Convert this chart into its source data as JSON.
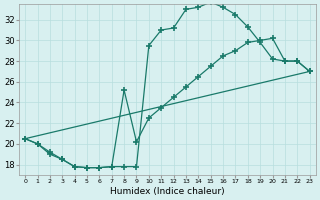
{
  "xlabel": "Humidex (Indice chaleur)",
  "bg_color": "#d8f0f0",
  "line_color": "#1a7a6a",
  "grid_color": "#b8dede",
  "xlim": [
    -0.5,
    23.5
  ],
  "ylim": [
    17,
    33.5
  ],
  "xticks": [
    0,
    1,
    2,
    3,
    4,
    5,
    6,
    7,
    8,
    9,
    10,
    11,
    12,
    13,
    14,
    15,
    16,
    17,
    18,
    19,
    20,
    21,
    22,
    23
  ],
  "yticks": [
    18,
    20,
    22,
    24,
    26,
    28,
    30,
    32
  ],
  "line1_x": [
    0,
    1,
    2,
    3,
    4,
    5,
    6,
    7,
    8,
    9,
    10,
    11,
    12,
    13,
    14,
    15,
    16,
    17,
    18,
    19,
    20,
    21,
    22,
    23
  ],
  "line1_y": [
    20.5,
    20.0,
    19.0,
    18.5,
    17.8,
    17.7,
    17.7,
    17.8,
    17.8,
    17.8,
    29.5,
    31.0,
    31.2,
    33.0,
    33.2,
    33.7,
    33.2,
    32.5,
    31.3,
    29.8,
    28.2,
    28.0,
    28.0,
    27.0
  ],
  "line2_x": [
    0,
    1,
    2,
    3,
    4,
    5,
    6,
    7,
    8,
    9,
    10,
    11,
    12,
    13,
    14,
    15,
    16,
    17,
    18,
    19,
    20,
    21,
    22,
    23
  ],
  "line2_y": [
    20.5,
    20.0,
    19.2,
    18.5,
    17.8,
    17.7,
    17.7,
    17.8,
    25.2,
    20.2,
    22.5,
    23.5,
    24.5,
    25.5,
    26.5,
    27.5,
    28.5,
    29.0,
    29.8,
    30.0,
    30.2,
    28.0,
    28.0,
    27.0
  ],
  "line3_x": [
    0,
    23
  ],
  "line3_y": [
    20.5,
    27.0
  ]
}
